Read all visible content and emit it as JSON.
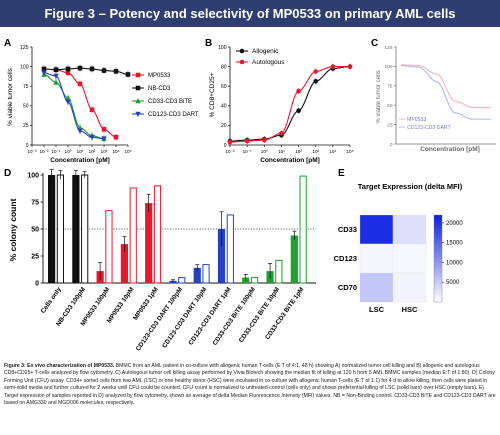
{
  "banner": {
    "title": "Figure 3 – Potency and selectivity of MP0533 on primary AML cells"
  },
  "panels": {
    "a": "A",
    "b": "B",
    "c": "C",
    "d": "D",
    "e": "E"
  },
  "chart_data": [
    {
      "panel": "A",
      "type": "line",
      "xlabel": "Concentration [pM]",
      "ylabel": "% viable tumor cells",
      "xscale": "log",
      "xlim": [
        0.001,
        100000
      ],
      "ylim": [
        0,
        125
      ],
      "yticks": [
        0,
        25,
        50,
        75,
        100,
        125
      ],
      "xticks": [
        "10⁻³",
        "10⁻²",
        "10⁻¹",
        "10⁰",
        "10¹",
        "10²",
        "10³",
        "10⁴",
        "10⁵"
      ],
      "legend_position": "right",
      "series": [
        {
          "name": "MP0533",
          "color": "#e8182c",
          "marker": "square",
          "x": [
            0.1,
            1,
            10,
            100,
            1000,
            10000
          ],
          "y": [
            96,
            92,
            78,
            45,
            20,
            10
          ]
        },
        {
          "name": "NB-CD3",
          "color": "#111111",
          "marker": "square",
          "x": [
            0.01,
            0.1,
            1,
            10,
            100,
            1000,
            10000,
            100000
          ],
          "y": [
            97,
            96,
            97,
            98,
            97,
            95,
            94,
            90
          ]
        },
        {
          "name": "CD33-CD3 BiTE",
          "color": "#1fa02f",
          "marker": "triangle",
          "x": [
            0.01,
            0.1,
            1,
            10,
            100,
            1000
          ],
          "y": [
            90,
            80,
            60,
            22,
            12,
            8
          ]
        },
        {
          "name": "CD123-CD3 DART",
          "color": "#2742c0",
          "marker": "triangle-down",
          "x": [
            0.01,
            0.1,
            1,
            10,
            100,
            1000
          ],
          "y": [
            92,
            88,
            55,
            18,
            10,
            8
          ]
        }
      ]
    },
    {
      "panel": "B",
      "type": "line",
      "xlabel": "Concentration [pM]",
      "ylabel": "% CD8+CD25+",
      "xscale": "log",
      "xlim": [
        0.01,
        100000
      ],
      "ylim": [
        0,
        100
      ],
      "yticks": [
        0,
        20,
        40,
        60,
        80,
        100
      ],
      "xticks": [
        "10⁻²",
        "10⁻¹",
        "10⁰",
        "10¹",
        "10²",
        "10³",
        "10⁴",
        "10⁵"
      ],
      "legend_position": "top-left",
      "series": [
        {
          "name": "Allogenic",
          "color": "#111111",
          "marker": "circle",
          "x": [
            0.01,
            0.1,
            1,
            10,
            100,
            1000,
            10000,
            100000
          ],
          "y": [
            4,
            5,
            6,
            10,
            35,
            65,
            78,
            80
          ]
        },
        {
          "name": "Autologous",
          "color": "#e8182c",
          "marker": "circle",
          "x": [
            0.01,
            0.1,
            1,
            10,
            100,
            1000,
            10000,
            100000
          ],
          "y": [
            3,
            4,
            5,
            12,
            55,
            75,
            80,
            80
          ]
        }
      ]
    },
    {
      "panel": "C",
      "type": "line",
      "xlabel": "Concentration [pM]",
      "ylabel": "% viable tumor cells",
      "xscale": "log",
      "ylim": [
        0,
        125
      ],
      "yticks": [
        0,
        25,
        50,
        75,
        100,
        125
      ],
      "legend_position": "bottom-left",
      "series": [
        {
          "name": "MP0533",
          "color": "#f08a92",
          "x": [
            0.01,
            0.1,
            1,
            10,
            100,
            1000
          ],
          "y": [
            102,
            101,
            90,
            55,
            47,
            47
          ]
        },
        {
          "name": "CD123-CD3 DART",
          "color": "#8a93e0",
          "x": [
            0.01,
            0.1,
            1,
            10,
            100,
            1000
          ],
          "y": [
            101,
            99,
            80,
            40,
            32,
            32
          ]
        }
      ]
    },
    {
      "panel": "D",
      "type": "bar",
      "ylabel": "% colony count",
      "ylim": [
        0,
        100
      ],
      "yticks": [
        0,
        25,
        50,
        75,
        100
      ],
      "dotted_reference": 50,
      "categories": [
        "Cells only",
        "NB-CD3 100pM",
        "MP0533 100pM",
        "MP0533 10pM",
        "MP0533 1pM",
        "CD123-CD3 DART 100pM",
        "CD123-CD3 DART 10pM",
        "CD123-CD3 DART 1pM",
        "CD33-CD3 BiTE 100pM",
        "CD33-CD3 BiTE 10pM",
        "CD33-CD3 BiTE 1pM"
      ],
      "series": [
        {
          "name": "LSC",
          "fill": "solid",
          "values": [
            100,
            100,
            11,
            36,
            74,
            2,
            14,
            50,
            5,
            11,
            44
          ],
          "errors": [
            5,
            4,
            8,
            7,
            8,
            1,
            3,
            16,
            3,
            7,
            4
          ]
        },
        {
          "name": "HSC",
          "fill": "empty",
          "values": [
            100,
            100,
            67,
            88,
            90,
            5,
            17,
            63,
            5,
            21,
            99
          ],
          "errors": [
            4,
            3,
            0,
            0,
            0,
            0,
            0,
            0,
            0,
            0,
            0
          ]
        }
      ],
      "colors": [
        "#111111",
        "#111111",
        "#e8182c",
        "#e8182c",
        "#e8182c",
        "#2742c0",
        "#2742c0",
        "#2742c0",
        "#1fa02f",
        "#1fa02f",
        "#1fa02f"
      ]
    },
    {
      "panel": "E",
      "type": "heatmap",
      "title": "Target Expression (delta MFI)",
      "rows": [
        "CD33",
        "CD123",
        "CD70"
      ],
      "columns": [
        "LSC",
        "HSC"
      ],
      "values": [
        [
          20500,
          3000
        ],
        [
          800,
          700
        ],
        [
          5500,
          1200
        ]
      ],
      "colorbar_ticks": [
        5000,
        10000,
        15000,
        20000
      ],
      "zlim": [
        0,
        22000
      ],
      "color_low": "#ffffff",
      "color_high": "#0b1fe0"
    }
  ],
  "caption": {
    "lead": "Figure 3: Ex vivo characterization of MP0533.",
    "body": " BMMC from an AML patient in co-culture with allogenic human T-cells (E:T of 4:1, 48 h) showing A) normalized tumor cell killing and B) allogenic and autologous CD8+CD25+ T-cells analyzed by flow cytometry. C) Autologous tumor cell killing assay performed by Vivia Biotech showing the median fit of killing at 120 h from 5 AML BMMC samples (median E:T of 1:80). D) Colony Forming Unit (CFU) assay. CD34+ sorted cells from two AML (LSC) or one healthy donor (HSC) were incubated in co-culture with allogenic human T-cells (E:T of 1:1) for 4 d to allow killing, then cells were plated in semi-solid media and further cultured for 2 weeks until CFU could be counted. CFU count is normalized to untreated control (cells only) and shows preferential killing of LSC (solid bars) over HSC (empty bars). E) Target expression of samples reported in D) analyzed by flow cytometry, shown as average of delta Median Fluorescence Intensity (MFI) values. NB = Non-Binding control. CD33-CD3 BiTE and CD123-CD3 DART are based on AMG330 and MGD006 molecules, respectively."
  }
}
